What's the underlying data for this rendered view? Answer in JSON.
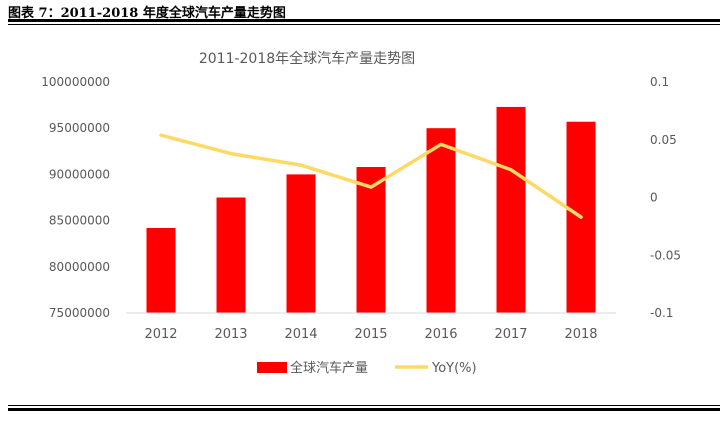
{
  "caption": "图表 7：2011-2018 年度全球汽车产量走势图",
  "chart_data": {
    "type": "bar",
    "title": "2011-2018年全球汽车产量走势图",
    "categories": [
      "2012",
      "2013",
      "2014",
      "2015",
      "2016",
      "2017",
      "2018"
    ],
    "series": [
      {
        "name": "全球汽车产量",
        "type": "bar",
        "axis": "left",
        "color": "#ff0000",
        "values": [
          84200000,
          87500000,
          90000000,
          90800000,
          95000000,
          97300000,
          95700000
        ]
      },
      {
        "name": "YoY(%)",
        "type": "line",
        "axis": "right",
        "color": "#ffd966",
        "values": [
          0.054,
          0.038,
          0.028,
          0.009,
          0.046,
          0.024,
          -0.017
        ]
      }
    ],
    "y_left": {
      "min": 75000000,
      "max": 100000000,
      "step": 5000000,
      "ticks": [
        "75000000",
        "80000000",
        "85000000",
        "90000000",
        "95000000",
        "100000000"
      ]
    },
    "y_right": {
      "min": -0.1,
      "max": 0.1,
      "step": 0.05,
      "ticks": [
        "-0.1",
        "-0.05",
        "0",
        "0.05",
        "0.1"
      ]
    },
    "legend_position": "bottom",
    "grid": false
  }
}
